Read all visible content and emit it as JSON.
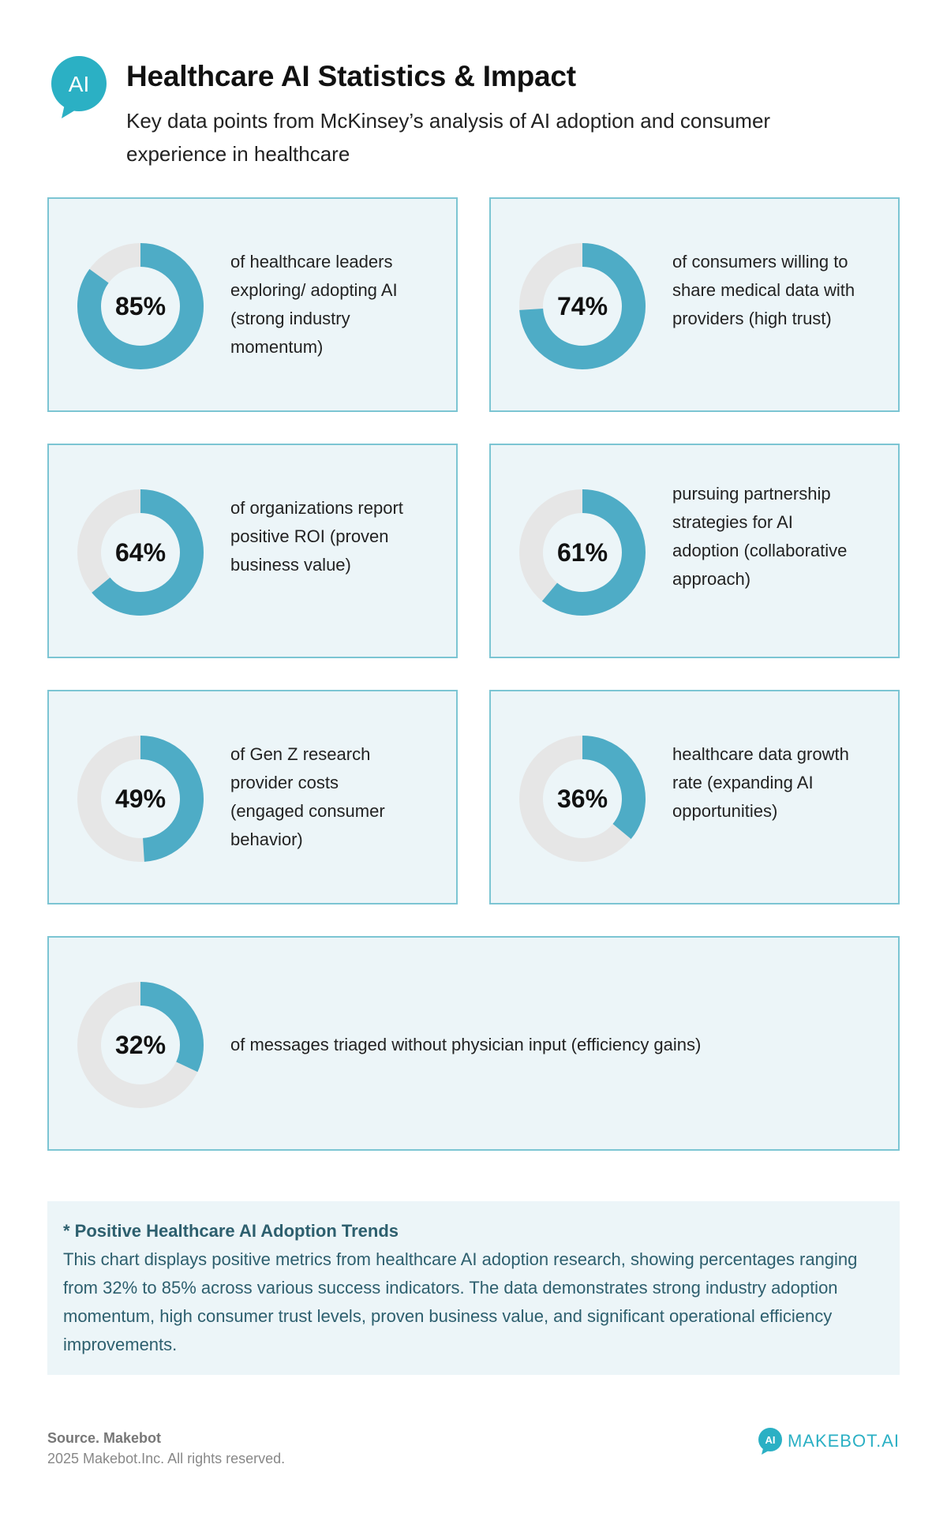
{
  "header": {
    "logo_text": "AI",
    "title": "Healthcare AI Statistics & Impact",
    "subtitle": "Key data points from McKinsey’s analysis of AI adoption and consumer experience in healthcare"
  },
  "colors": {
    "accent": "#4eacc6",
    "track": "#e6e6e6",
    "card_bg": "#ecf5f8",
    "card_border": "#7cc5d3"
  },
  "chart_data": {
    "type": "pie",
    "title": "Healthcare AI Statistics & Impact",
    "items": [
      {
        "value": 85,
        "label": "85%",
        "description": "of healthcare leaders exploring/ adopting AI (strong industry momentum)"
      },
      {
        "value": 74,
        "label": "74%",
        "description": "of consumers willing to share medical data with providers (high trust)"
      },
      {
        "value": 64,
        "label": "64%",
        "description": "of organizations report positive ROI (proven business value)"
      },
      {
        "value": 61,
        "label": "61%",
        "description": "pursuing partnership strategies for AI adoption (collaborative approach)"
      },
      {
        "value": 49,
        "label": "49%",
        "description": "of Gen Z research provider costs (engaged consumer behavior)"
      },
      {
        "value": 36,
        "label": "36%",
        "description": "healthcare data growth rate (expanding AI opportunities)"
      },
      {
        "value": 32,
        "label": "32%",
        "description": "of messages triaged without physician input (efficiency gains)"
      }
    ]
  },
  "note": {
    "title": "* Positive Healthcare AI Adoption Trends",
    "body": "This chart displays positive metrics from healthcare AI adoption research, showing percentages ranging from 32% to 85% across various success indicators. The data demonstrates strong industry adoption momentum, high consumer trust levels, proven business value, and significant operational efficiency improvements."
  },
  "footer": {
    "source": "Source. Makebot",
    "copyright": "2025 Makebot.Inc. All rights reserved.",
    "brand_name": "MAKEBOT.AI",
    "brand_icon_text": "AI"
  }
}
